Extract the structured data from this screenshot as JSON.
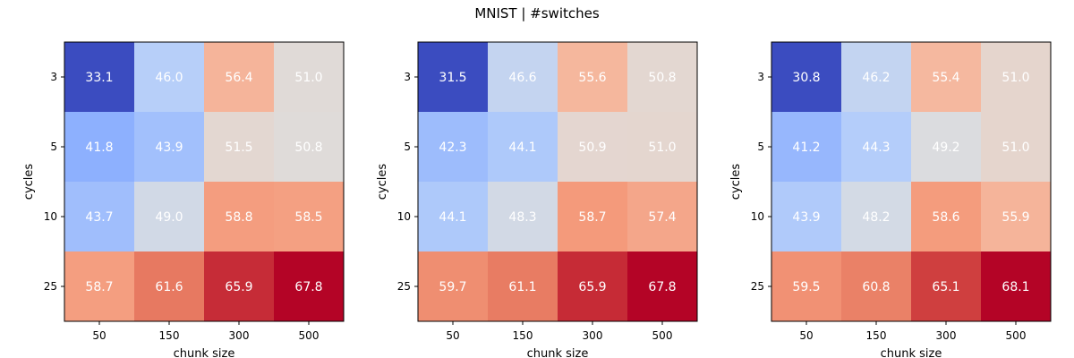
{
  "figure": {
    "title": "MNIST | #switches"
  },
  "chart_data": [
    {
      "type": "heatmap",
      "title": "",
      "xlabel": "chunk size",
      "ylabel": "cycles",
      "x_categories": [
        "50",
        "150",
        "300",
        "500"
      ],
      "y_categories": [
        "3",
        "5",
        "10",
        "25"
      ],
      "values": [
        [
          33.1,
          46.0,
          56.4,
          51.0
        ],
        [
          41.8,
          43.9,
          51.5,
          50.8
        ],
        [
          43.7,
          49.0,
          58.8,
          58.5
        ],
        [
          58.7,
          61.6,
          65.9,
          67.8
        ]
      ],
      "colormap": "coolwarm",
      "value_labels": true,
      "grid": false
    },
    {
      "type": "heatmap",
      "title": "",
      "xlabel": "chunk size",
      "ylabel": "cycles",
      "x_categories": [
        "50",
        "150",
        "300",
        "500"
      ],
      "y_categories": [
        "3",
        "5",
        "10",
        "25"
      ],
      "values": [
        [
          31.5,
          46.6,
          55.6,
          50.8
        ],
        [
          42.3,
          44.1,
          50.9,
          51.0
        ],
        [
          44.1,
          48.3,
          58.7,
          57.4
        ],
        [
          59.7,
          61.1,
          65.9,
          67.8
        ]
      ],
      "colormap": "coolwarm",
      "value_labels": true,
      "grid": false
    },
    {
      "type": "heatmap",
      "title": "",
      "xlabel": "chunk size",
      "ylabel": "cycles",
      "x_categories": [
        "50",
        "150",
        "300",
        "500"
      ],
      "y_categories": [
        "3",
        "5",
        "10",
        "25"
      ],
      "values": [
        [
          30.8,
          46.2,
          55.4,
          51.0
        ],
        [
          41.2,
          44.3,
          49.2,
          51.0
        ],
        [
          43.9,
          48.2,
          58.6,
          55.9
        ],
        [
          59.5,
          60.8,
          65.1,
          68.1
        ]
      ],
      "colormap": "coolwarm",
      "value_labels": true,
      "grid": false
    }
  ]
}
